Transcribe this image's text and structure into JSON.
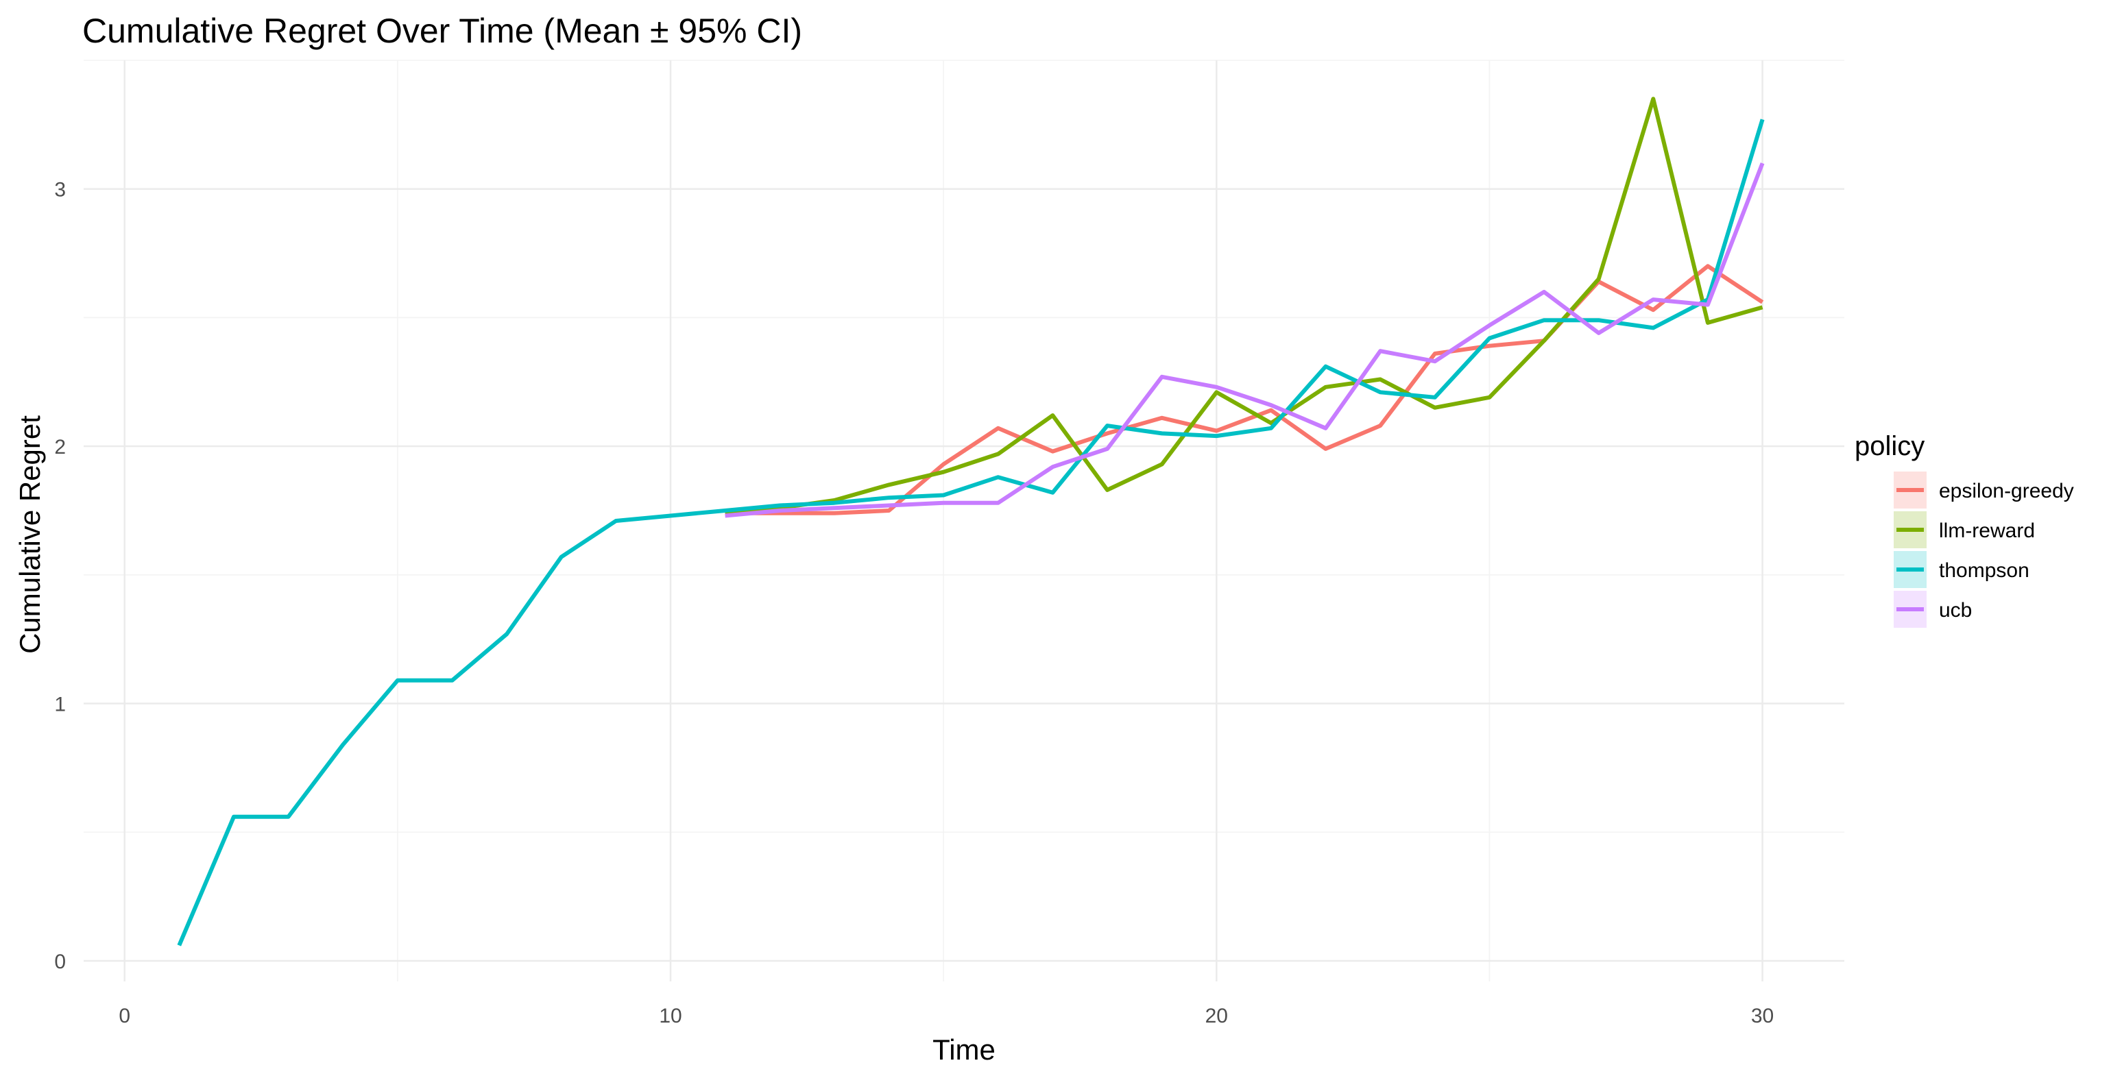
{
  "chart_data": {
    "type": "line",
    "title": "Cumulative Regret Over Time (Mean ± 95% CI)",
    "xlabel": "Time",
    "ylabel": "Cumulative Regret",
    "xlim": [
      -0.75,
      31.5
    ],
    "ylim": [
      -0.08,
      3.5
    ],
    "x_ticks": [
      0,
      10,
      20,
      30
    ],
    "y_ticks": [
      0,
      1,
      2,
      3
    ],
    "grid": true,
    "legend": {
      "title": "policy",
      "position": "right"
    },
    "series": [
      {
        "name": "epsilon-greedy",
        "color": "#F8766D",
        "x": [
          11,
          12,
          13,
          14,
          15,
          16,
          17,
          18,
          19,
          20,
          21,
          22,
          23,
          24,
          25,
          26,
          27,
          28,
          29,
          30
        ],
        "y": [
          1.74,
          1.74,
          1.74,
          1.75,
          1.93,
          2.07,
          1.98,
          2.05,
          2.11,
          2.06,
          2.14,
          1.99,
          2.08,
          2.36,
          2.39,
          2.41,
          2.64,
          2.53,
          2.7,
          2.56
        ]
      },
      {
        "name": "llm-reward",
        "color": "#7CAE00",
        "x": [
          11,
          12,
          13,
          14,
          15,
          16,
          17,
          18,
          19,
          20,
          21,
          22,
          23,
          24,
          25,
          26,
          27,
          28,
          29,
          30
        ],
        "y": [
          1.74,
          1.76,
          1.79,
          1.85,
          1.9,
          1.97,
          2.12,
          1.83,
          1.93,
          2.21,
          2.09,
          2.23,
          2.26,
          2.15,
          2.19,
          2.41,
          2.65,
          3.35,
          2.48,
          2.54
        ]
      },
      {
        "name": "thompson",
        "color": "#00BFC4",
        "x": [
          1,
          2,
          3,
          4,
          5,
          6,
          7,
          8,
          9,
          10,
          11,
          12,
          13,
          14,
          15,
          16,
          17,
          18,
          19,
          20,
          21,
          22,
          23,
          24,
          25,
          26,
          27,
          28,
          29,
          30
        ],
        "y": [
          0.06,
          0.56,
          0.56,
          0.84,
          1.09,
          1.09,
          1.27,
          1.57,
          1.71,
          1.73,
          1.75,
          1.77,
          1.78,
          1.8,
          1.81,
          1.88,
          1.82,
          2.08,
          2.05,
          2.04,
          2.07,
          2.31,
          2.21,
          2.19,
          2.42,
          2.49,
          2.49,
          2.46,
          2.57,
          3.27
        ]
      },
      {
        "name": "ucb",
        "color": "#C77CFF",
        "x": [
          11,
          12,
          13,
          14,
          15,
          16,
          17,
          18,
          19,
          20,
          21,
          22,
          23,
          24,
          25,
          26,
          27,
          28,
          29,
          30
        ],
        "y": [
          1.73,
          1.75,
          1.76,
          1.77,
          1.78,
          1.78,
          1.92,
          1.99,
          2.27,
          2.23,
          2.16,
          2.07,
          2.37,
          2.33,
          2.47,
          2.6,
          2.44,
          2.57,
          2.55,
          3.1
        ]
      }
    ]
  }
}
